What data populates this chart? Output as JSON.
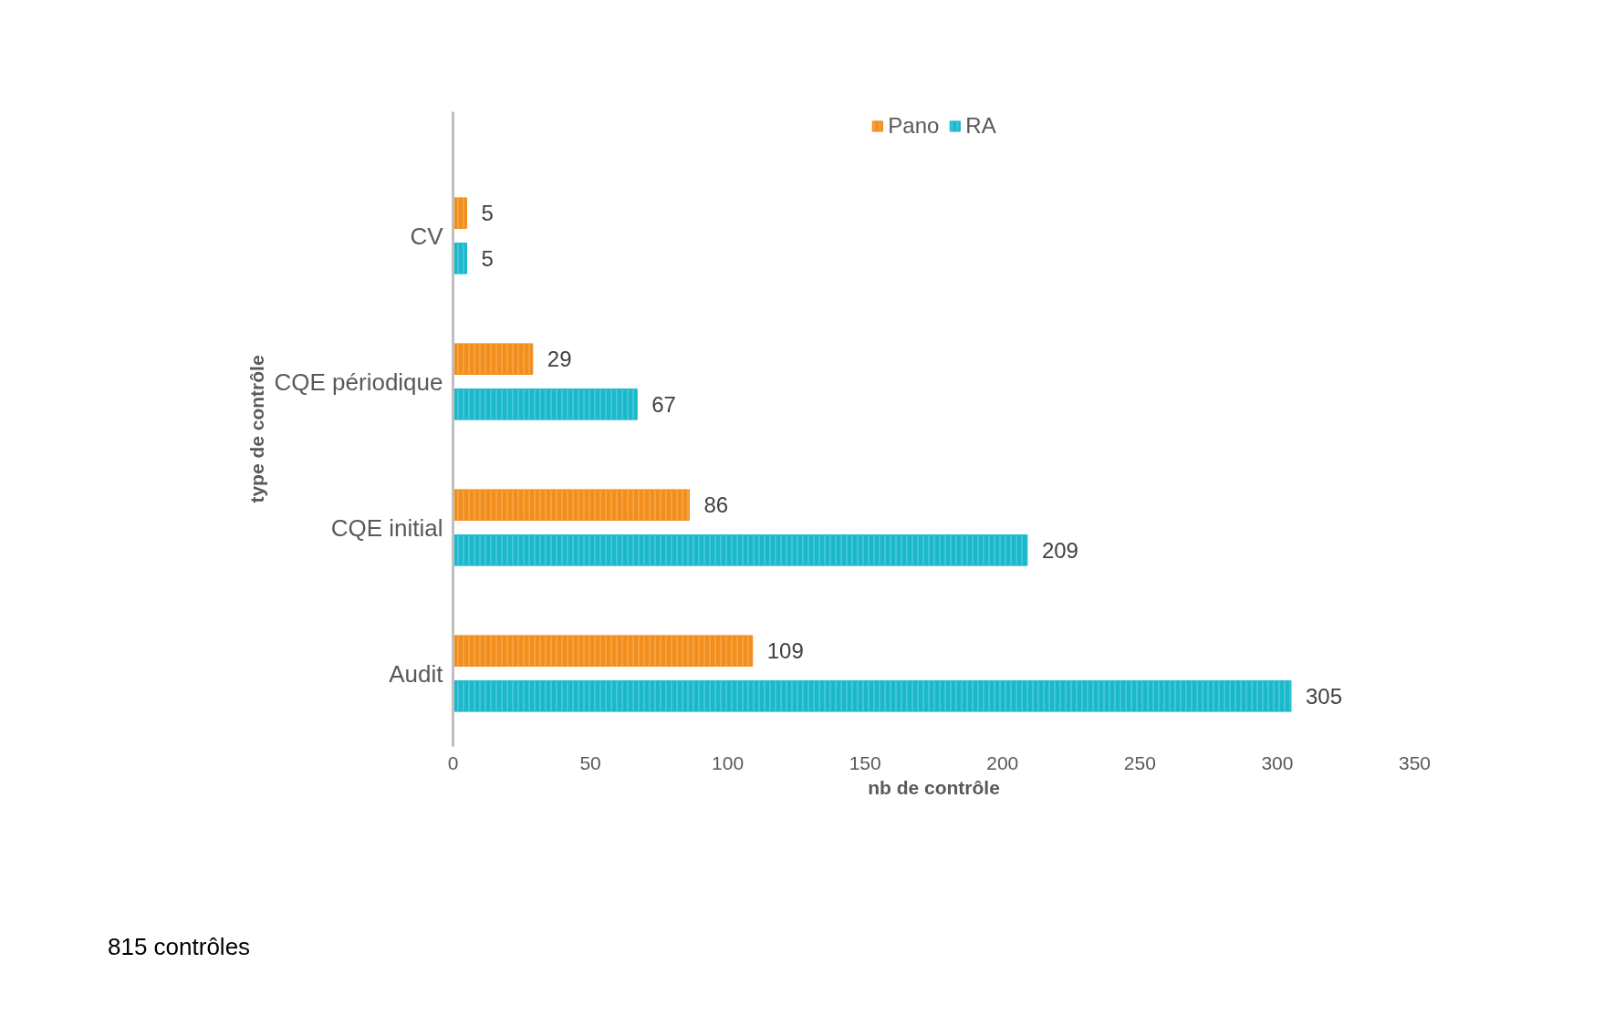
{
  "chart_data": {
    "type": "bar",
    "orientation": "horizontal",
    "categories": [
      "CV",
      "CQE périodique",
      "CQE initial",
      "Audit"
    ],
    "series": [
      {
        "name": "Pano",
        "color": "#f28e1c",
        "values": [
          5,
          29,
          86,
          109
        ]
      },
      {
        "name": "RA",
        "color": "#1bb8cc",
        "values": [
          5,
          67,
          209,
          305
        ]
      }
    ],
    "xlabel": "nb de contrôle",
    "ylabel": "type de contrôle",
    "xlim": [
      0,
      350
    ],
    "xticks": [
      0,
      50,
      100,
      150,
      200,
      250,
      300,
      350
    ],
    "data_labels": true,
    "grid": false,
    "legend": "top",
    "annotations": [
      "815 contrôles"
    ]
  }
}
